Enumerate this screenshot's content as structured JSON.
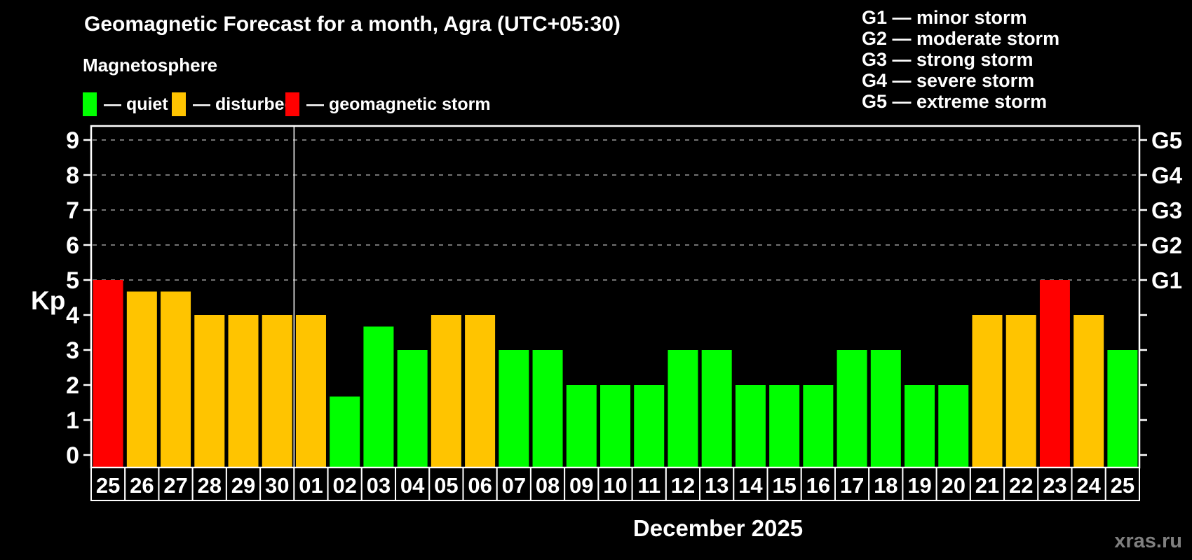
{
  "colors": {
    "background": "#000000",
    "quiet": "#00ff00",
    "disturbed": "#ffc400",
    "storm": "#ff0000",
    "axis": "#ffffff",
    "grid": "#999999",
    "text": "#ffffff",
    "watermark": "#7f7f7f"
  },
  "header": {
    "title": "Geomagnetic Forecast for a month, Agra (UTC+05:30)",
    "subtitle": "Magnetosphere",
    "legend": [
      {
        "key": "quiet",
        "label": "— quiet"
      },
      {
        "key": "disturbed",
        "label": "— disturbed"
      },
      {
        "key": "storm",
        "label": "— geomagnetic storm"
      }
    ],
    "g_scale_legend": [
      "G1 — minor storm",
      "G2 — moderate storm",
      "G3 — strong storm",
      "G4 — severe storm",
      "G5 — extreme storm"
    ]
  },
  "chart_data": {
    "type": "bar",
    "title": "Geomagnetic Forecast for a month, Agra (UTC+05:30)",
    "ylabel": "Kp",
    "xlabel": "December 2025",
    "ylim": [
      0,
      9
    ],
    "y_ticks": [
      0,
      1,
      2,
      3,
      4,
      5,
      6,
      7,
      8,
      9
    ],
    "dashed_gridlines_at_kp": [
      5,
      6,
      7,
      8,
      9
    ],
    "right_axis_labels": [
      {
        "kp": 5,
        "label": "G1"
      },
      {
        "kp": 6,
        "label": "G2"
      },
      {
        "kp": 7,
        "label": "G3"
      },
      {
        "kp": 8,
        "label": "G4"
      },
      {
        "kp": 9,
        "label": "G5"
      }
    ],
    "month_separator_after_index": 5,
    "grid": "horizontal dashed at Kp 5-9",
    "legend_position": "top-left and top-right",
    "categories": [
      "25",
      "26",
      "27",
      "28",
      "29",
      "30",
      "01",
      "02",
      "03",
      "04",
      "05",
      "06",
      "07",
      "08",
      "09",
      "10",
      "11",
      "12",
      "13",
      "14",
      "15",
      "16",
      "17",
      "18",
      "19",
      "20",
      "21",
      "22",
      "23",
      "24",
      "25"
    ],
    "values": [
      5,
      4.67,
      4.67,
      4,
      4,
      4,
      4,
      1.67,
      3.67,
      3,
      4,
      4,
      3,
      3,
      2,
      2,
      2,
      3,
      3,
      2,
      2,
      2,
      3,
      3,
      2,
      2,
      4,
      4,
      5,
      4,
      3
    ],
    "statuses": [
      "storm",
      "disturbed",
      "disturbed",
      "disturbed",
      "disturbed",
      "disturbed",
      "disturbed",
      "quiet",
      "quiet",
      "quiet",
      "disturbed",
      "disturbed",
      "quiet",
      "quiet",
      "quiet",
      "quiet",
      "quiet",
      "quiet",
      "quiet",
      "quiet",
      "quiet",
      "quiet",
      "quiet",
      "quiet",
      "quiet",
      "quiet",
      "disturbed",
      "disturbed",
      "storm",
      "disturbed",
      "quiet"
    ]
  },
  "footer": {
    "caption": "December 2025",
    "watermark": "xras.ru"
  }
}
